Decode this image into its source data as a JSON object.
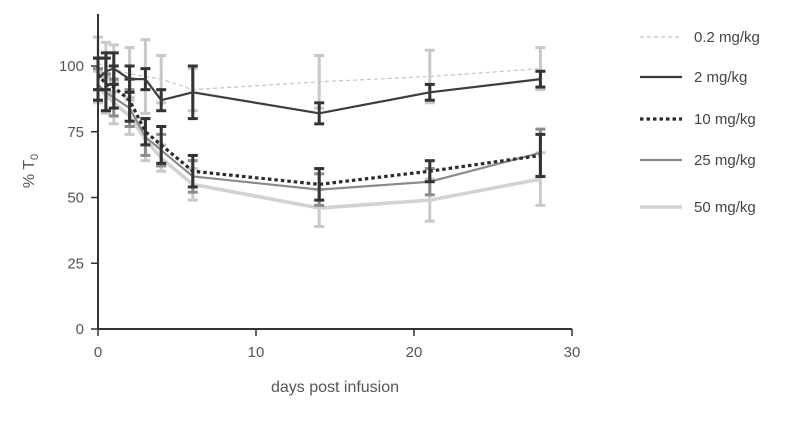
{
  "chart_data": {
    "type": "line",
    "title": "",
    "xlabel": "days post infusion",
    "ylabel": "% T0",
    "ylabel_main": "% T",
    "ylabel_sub": "0",
    "xlim": [
      0,
      30
    ],
    "ylim": [
      0,
      115
    ],
    "xticks": [
      0,
      10,
      20,
      30
    ],
    "yticks": [
      0,
      25,
      50,
      75,
      100
    ],
    "xtick_labels": [
      "0",
      "10",
      "20",
      "30"
    ],
    "ytick_labels": [
      "0",
      "25",
      "50",
      "75",
      "100"
    ],
    "grid": false,
    "legend_position": "right",
    "x": [
      0,
      0.5,
      1,
      2,
      3,
      4,
      6,
      14,
      21,
      28
    ],
    "series": [
      {
        "name": "0.2 mg/kg",
        "color": "#c4c4c4",
        "style": "dashed-thin",
        "values": [
          101,
          100,
          99,
          97,
          96,
          95,
          91,
          94,
          96,
          99
        ],
        "errors": [
          10,
          9,
          9,
          10,
          14,
          9,
          8,
          10,
          10,
          8
        ]
      },
      {
        "name": "2 mg/kg",
        "color": "#3d3d3d",
        "style": "solid",
        "values": [
          95,
          98,
          99,
          95,
          95,
          87,
          90,
          82,
          90,
          95
        ],
        "errors": [
          8,
          7,
          6,
          5,
          4,
          4,
          10,
          4,
          3,
          3
        ]
      },
      {
        "name": "10 mg/kg",
        "color": "#2b2b2b",
        "style": "dotted-bold",
        "values": [
          97,
          93,
          92,
          87,
          75,
          70,
          60,
          55,
          60,
          66
        ],
        "errors": [
          6,
          10,
          8,
          8,
          5,
          7,
          6,
          6,
          4,
          8
        ]
      },
      {
        "name": "25 mg/kg",
        "color": "#8a8a8a",
        "style": "solid",
        "values": [
          93,
          90,
          88,
          84,
          73,
          68,
          58,
          53,
          56,
          67
        ],
        "errors": [
          6,
          7,
          7,
          7,
          7,
          6,
          6,
          6,
          5,
          9
        ]
      },
      {
        "name": "50 mg/kg",
        "color": "#d2d2d2",
        "style": "solid-thick",
        "values": [
          92,
          89,
          86,
          81,
          72,
          65,
          55,
          46,
          49,
          57
        ],
        "errors": [
          6,
          7,
          8,
          7,
          8,
          5,
          6,
          7,
          8,
          10
        ]
      }
    ]
  }
}
